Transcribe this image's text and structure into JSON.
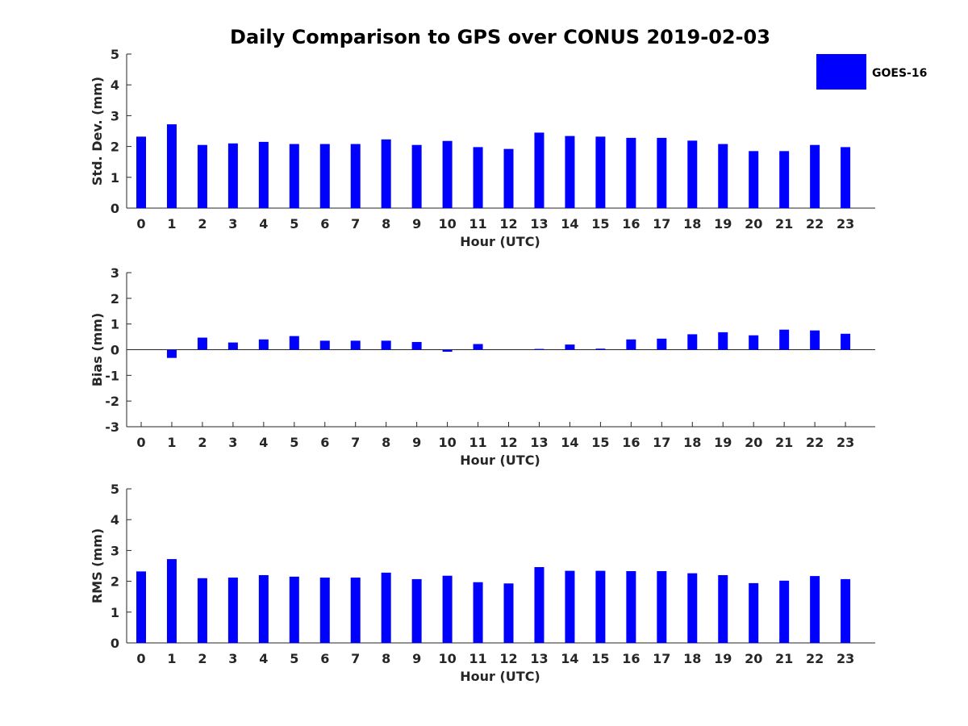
{
  "figure_title": "Daily Comparison to GPS over CONUS 2019-02-03",
  "legend": {
    "label": "GOES-16",
    "color": "#0000ff"
  },
  "bar_color": "#0000ff",
  "chart_data": [
    {
      "type": "bar",
      "id": "stddev",
      "title": "Daily Comparison to GPS over CONUS 2019-02-03",
      "xlabel": "Hour (UTC)",
      "ylabel": "Std. Dev. (mm)",
      "ylim": [
        0,
        5
      ],
      "yticks": [
        "0",
        "1",
        "2",
        "3",
        "4",
        "5"
      ],
      "categories": [
        "0",
        "1",
        "2",
        "3",
        "4",
        "5",
        "6",
        "7",
        "8",
        "9",
        "10",
        "11",
        "12",
        "13",
        "14",
        "15",
        "16",
        "17",
        "18",
        "19",
        "20",
        "21",
        "22",
        "23"
      ],
      "series": [
        {
          "name": "GOES-16",
          "values": [
            2.32,
            2.72,
            2.05,
            2.1,
            2.15,
            2.08,
            2.08,
            2.08,
            2.23,
            2.05,
            2.18,
            1.98,
            1.92,
            2.45,
            2.34,
            2.32,
            2.28,
            2.28,
            2.19,
            2.08,
            1.85,
            1.85,
            2.05,
            1.98
          ]
        }
      ]
    },
    {
      "type": "bar",
      "id": "bias",
      "xlabel": "Hour (UTC)",
      "ylabel": "Bias (mm)",
      "ylim": [
        -3,
        3
      ],
      "yticks": [
        "-3",
        "-2",
        "-1",
        "0",
        "1",
        "2",
        "3"
      ],
      "categories": [
        "0",
        "1",
        "2",
        "3",
        "4",
        "5",
        "6",
        "7",
        "8",
        "9",
        "10",
        "11",
        "12",
        "13",
        "14",
        "15",
        "16",
        "17",
        "18",
        "19",
        "20",
        "21",
        "22",
        "23"
      ],
      "series": [
        {
          "name": "GOES-16",
          "values": [
            0.0,
            -0.32,
            0.47,
            0.28,
            0.4,
            0.53,
            0.35,
            0.35,
            0.35,
            0.3,
            -0.08,
            0.22,
            0.0,
            0.03,
            0.2,
            0.04,
            0.4,
            0.43,
            0.6,
            0.68,
            0.56,
            0.78,
            0.75,
            0.62
          ]
        }
      ]
    },
    {
      "type": "bar",
      "id": "rms",
      "xlabel": "Hour (UTC)",
      "ylabel": "RMS (mm)",
      "ylim": [
        0,
        5
      ],
      "yticks": [
        "0",
        "1",
        "2",
        "3",
        "4",
        "5"
      ],
      "categories": [
        "0",
        "1",
        "2",
        "3",
        "4",
        "5",
        "6",
        "7",
        "8",
        "9",
        "10",
        "11",
        "12",
        "13",
        "14",
        "15",
        "16",
        "17",
        "18",
        "19",
        "20",
        "21",
        "22",
        "23"
      ],
      "series": [
        {
          "name": "GOES-16",
          "values": [
            2.32,
            2.72,
            2.1,
            2.12,
            2.2,
            2.15,
            2.12,
            2.12,
            2.28,
            2.07,
            2.18,
            1.97,
            1.93,
            2.46,
            2.34,
            2.34,
            2.33,
            2.33,
            2.26,
            2.2,
            1.94,
            2.02,
            2.17,
            2.07
          ]
        }
      ]
    }
  ]
}
